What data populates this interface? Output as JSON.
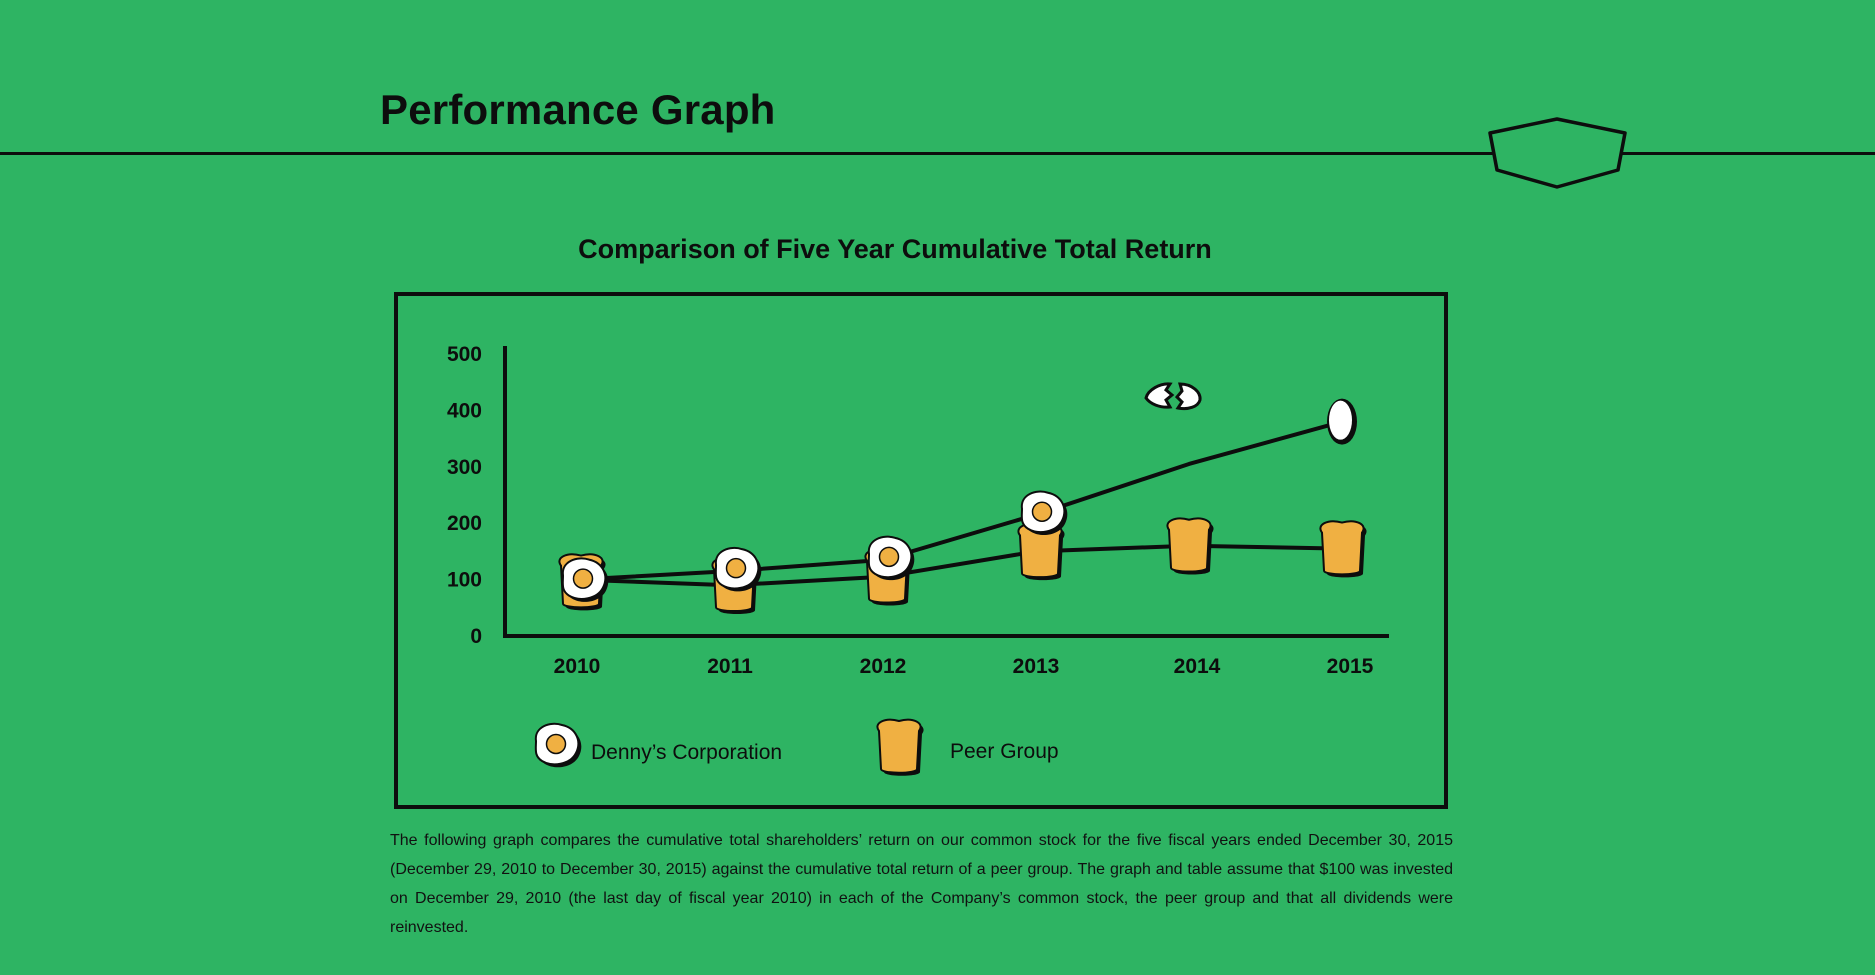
{
  "header": {
    "title": "Performance Graph"
  },
  "caption": "The following graph compares the cumulative total shareholders’ return on our common stock for the five fiscal years ended December 30, 2015 (December 29, 2010 to December 30, 2015) against the cumulative total return of a peer group. The graph and table assume that $100 was invested on December 29, 2010 (the last day of fiscal year 2010) in each of the Company’s common stock, the peer group and that all dividends were reinvested.",
  "colors": {
    "background": "#2eb463",
    "ink": "#0d0d0d",
    "yolk": "#f0b042",
    "egg_white": "#ffffff"
  },
  "chart_data": {
    "type": "line",
    "title": "Comparison of Five Year Cumulative Total Return",
    "xlabel": "",
    "ylabel": "",
    "categories": [
      "2010",
      "2011",
      "2012",
      "2013",
      "2014",
      "2015"
    ],
    "ylim": [
      0,
      500
    ],
    "yticks": [
      "0",
      "100",
      "200",
      "300",
      "400",
      "500"
    ],
    "grid": false,
    "legend_position": "bottom-left",
    "series": [
      {
        "name": "Denny’s Corporation",
        "values": [
          100,
          115,
          135,
          215,
          305,
          380
        ],
        "marker": "fried-egg-icon",
        "last_marker": "whole-egg-icon"
      },
      {
        "name": "Peer Group",
        "values": [
          100,
          90,
          105,
          150,
          160,
          155
        ],
        "marker": "toast-icon"
      }
    ]
  }
}
